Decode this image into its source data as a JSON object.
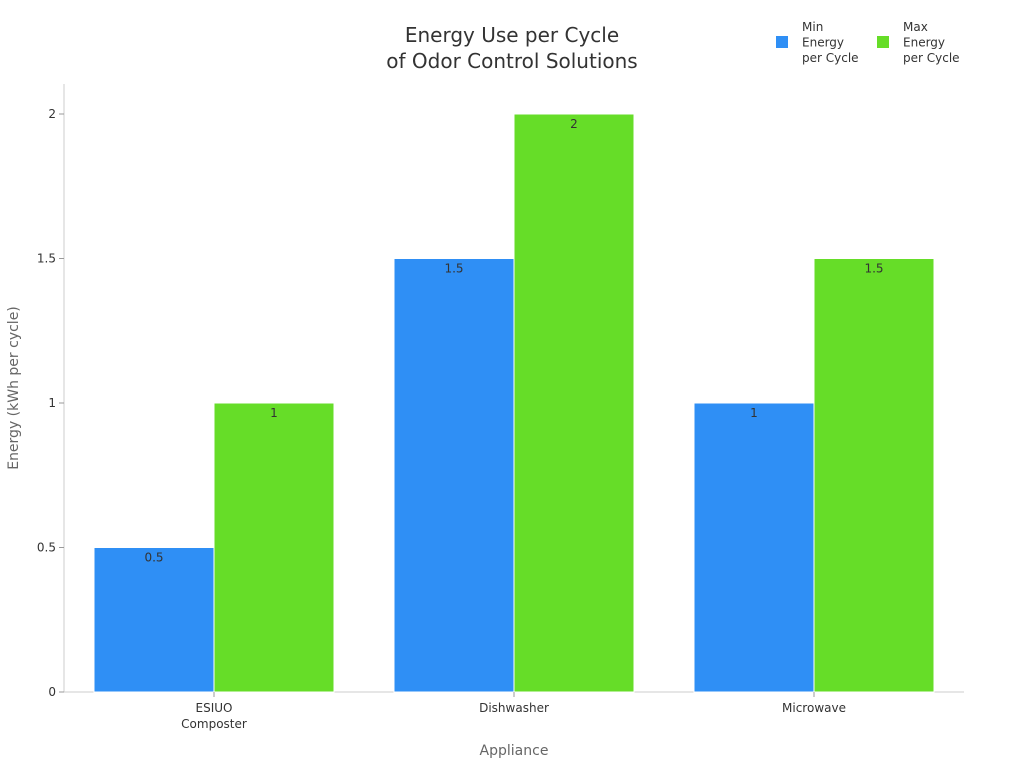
{
  "chart_data": {
    "type": "bar",
    "title": [
      "Energy Use per Cycle",
      "of Odor Control Solutions"
    ],
    "xlabel": "Appliance",
    "ylabel": "Energy (kWh per cycle)",
    "categories": [
      [
        "ESIUO",
        "Composter"
      ],
      [
        "Dishwasher"
      ],
      [
        "Microwave"
      ]
    ],
    "ylim": [
      0,
      2.1
    ],
    "yticks": [
      0,
      0.5,
      1,
      1.5,
      2
    ],
    "ytick_labels": [
      "0",
      "0.5",
      "1",
      "1.5",
      "2"
    ],
    "series": [
      {
        "name": [
          "Min",
          "Energy",
          "per Cycle"
        ],
        "color": "#2f8ff5",
        "values": [
          0.5,
          1.5,
          1
        ],
        "labels": [
          "0.5",
          "1.5",
          "1"
        ]
      },
      {
        "name": [
          "Max",
          "Energy",
          "per Cycle"
        ],
        "color": "#66dd28",
        "values": [
          1,
          2,
          1.5
        ],
        "labels": [
          "1",
          "2",
          "1.5"
        ]
      }
    ],
    "grid": false,
    "legend": "top-right"
  }
}
